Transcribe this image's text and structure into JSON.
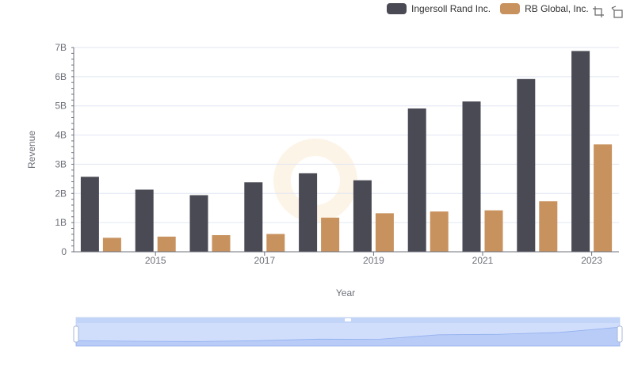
{
  "legend": {
    "items": [
      {
        "label": "Ingersoll Rand Inc.",
        "color": "#4a4a55"
      },
      {
        "label": "RB Global, Inc.",
        "color": "#c8925e"
      }
    ]
  },
  "toolbox": {
    "icons": [
      "zoom-select-icon",
      "zoom-reset-icon"
    ]
  },
  "chart_data": {
    "type": "bar",
    "title": "",
    "xlabel": "Year",
    "ylabel": "Revenue",
    "categories": [
      "2014",
      "2015",
      "2016",
      "2017",
      "2018",
      "2019",
      "2020",
      "2021",
      "2022",
      "2023"
    ],
    "x_tick_labels": [
      "2015",
      "2017",
      "2019",
      "2021",
      "2023"
    ],
    "y_ticks": [
      "0",
      "1B",
      "2B",
      "3B",
      "4B",
      "5B",
      "6B",
      "7B"
    ],
    "ylim": [
      0,
      7000000000
    ],
    "grid": true,
    "legend_position": "top-right",
    "series": [
      {
        "name": "Ingersoll Rand Inc.",
        "color": "#4a4a55",
        "values": [
          2570000000,
          2130000000,
          1940000000,
          2380000000,
          2690000000,
          2450000000,
          4910000000,
          5150000000,
          5920000000,
          6880000000
        ]
      },
      {
        "name": "RB Global, Inc.",
        "color": "#c8925e",
        "values": [
          480000000,
          520000000,
          570000000,
          610000000,
          1170000000,
          1320000000,
          1380000000,
          1420000000,
          1730000000,
          3680000000
        ]
      }
    ]
  }
}
